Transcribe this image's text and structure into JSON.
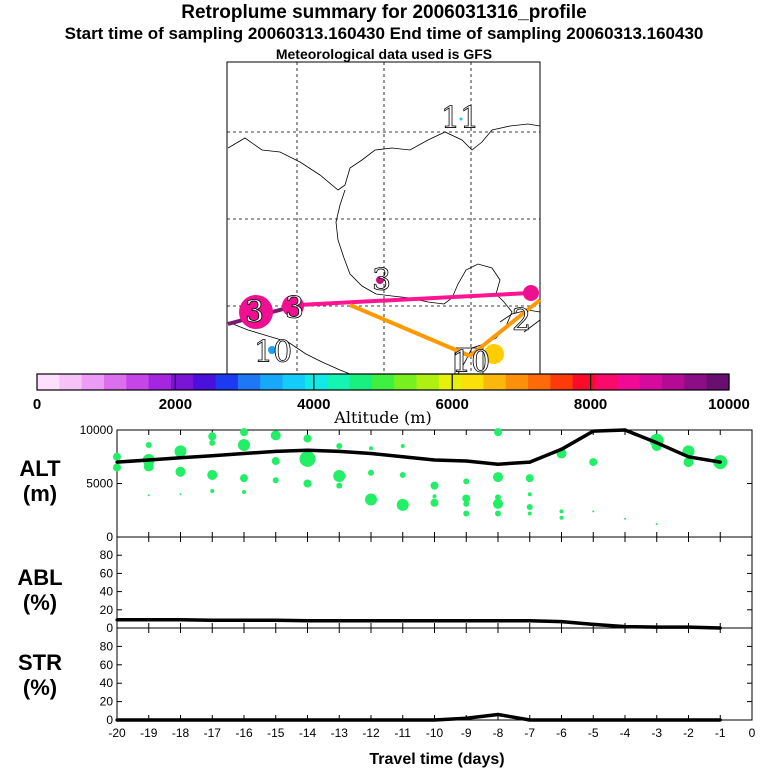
{
  "header": {
    "title": "Retroplume summary for 2006031316_profile",
    "sampling": "Start time of sampling 20060313.160430     End time of sampling 20060313.160430",
    "met": "Meteorological data used is GFS"
  },
  "map": {
    "markers": [
      "11",
      "3",
      "3",
      "3",
      "2",
      "10",
      "10"
    ],
    "line_colors": {
      "magenta": "#ff1493",
      "orange": "#ff9900",
      "purple": "#7a1a6f"
    }
  },
  "colorbar": {
    "label": "Altitude (m)",
    "ticks": [
      "0",
      "2000",
      "4000",
      "6000",
      "8000",
      "10000"
    ],
    "colors": [
      "#fde0fd",
      "#f6c2f8",
      "#ec9cf4",
      "#dc6fee",
      "#c545e8",
      "#a426e0",
      "#7a14d6",
      "#4a10dc",
      "#1e3af0",
      "#1e78f6",
      "#18a8fa",
      "#14ccfa",
      "#12e8e6",
      "#14f4b4",
      "#18f080",
      "#40f040",
      "#78f020",
      "#b0f010",
      "#e6f00a",
      "#fce00a",
      "#fcb80a",
      "#fc900a",
      "#fc6a0a",
      "#fc3a0a",
      "#fc0a2a",
      "#fc0a6a",
      "#f00a96",
      "#d60a9e",
      "#b40a96",
      "#8c0e86",
      "#6a0f72"
    ]
  },
  "panels": {
    "alt": {
      "label1": "ALT",
      "label2": "(m)"
    },
    "abl": {
      "label1": "ABL",
      "label2": "(%)"
    },
    "str": {
      "label1": "STR",
      "label2": "(%)"
    }
  },
  "chart_data": [
    {
      "type": "line",
      "title": "ALT",
      "ylabel": "ALT (m)",
      "xlabel": "Travel time (days)",
      "xlim": [
        -20,
        0
      ],
      "ylim": [
        0,
        10000
      ],
      "yticks": [
        "0",
        "5000",
        "10000"
      ],
      "x": [
        -20,
        -19,
        -18,
        -17,
        -16,
        -15,
        -14,
        -13,
        -12,
        -11,
        -10,
        -9,
        -8,
        -7,
        -6,
        -5,
        -4,
        -3,
        -2,
        -1
      ],
      "values": [
        7000,
        7200,
        7400,
        7600,
        7800,
        8000,
        8100,
        8000,
        7800,
        7500,
        7200,
        7100,
        6800,
        7000,
        8200,
        9900,
        10000,
        8800,
        7500,
        7000
      ],
      "scatter": [
        {
          "x": -20,
          "y": 7500,
          "s": 4
        },
        {
          "x": -20,
          "y": 6500,
          "s": 4
        },
        {
          "x": -19,
          "y": 8600,
          "s": 3
        },
        {
          "x": -19,
          "y": 7200,
          "s": 6
        },
        {
          "x": -19,
          "y": 6600,
          "s": 5
        },
        {
          "x": -19,
          "y": 3900,
          "s": 1
        },
        {
          "x": -18,
          "y": 8000,
          "s": 6
        },
        {
          "x": -18,
          "y": 6100,
          "s": 5
        },
        {
          "x": -18,
          "y": 4000,
          "s": 1
        },
        {
          "x": -17,
          "y": 9400,
          "s": 4
        },
        {
          "x": -17,
          "y": 8800,
          "s": 3
        },
        {
          "x": -17,
          "y": 5800,
          "s": 5
        },
        {
          "x": -17,
          "y": 4300,
          "s": 2
        },
        {
          "x": -16,
          "y": 9800,
          "s": 4
        },
        {
          "x": -16,
          "y": 8600,
          "s": 6
        },
        {
          "x": -16,
          "y": 5500,
          "s": 4
        },
        {
          "x": -16,
          "y": 4200,
          "s": 2
        },
        {
          "x": -15,
          "y": 9500,
          "s": 5
        },
        {
          "x": -15,
          "y": 7100,
          "s": 4
        },
        {
          "x": -15,
          "y": 5300,
          "s": 3
        },
        {
          "x": -14,
          "y": 9200,
          "s": 4
        },
        {
          "x": -14,
          "y": 7300,
          "s": 8
        },
        {
          "x": -14,
          "y": 5000,
          "s": 4
        },
        {
          "x": -13,
          "y": 8500,
          "s": 3
        },
        {
          "x": -13,
          "y": 5700,
          "s": 6
        },
        {
          "x": -13,
          "y": 4800,
          "s": 3
        },
        {
          "x": -12,
          "y": 8300,
          "s": 2
        },
        {
          "x": -12,
          "y": 6000,
          "s": 3
        },
        {
          "x": -12,
          "y": 3500,
          "s": 6
        },
        {
          "x": -11,
          "y": 8500,
          "s": 2
        },
        {
          "x": -11,
          "y": 5800,
          "s": 3
        },
        {
          "x": -11,
          "y": 3000,
          "s": 6
        },
        {
          "x": -10,
          "y": 4800,
          "s": 4
        },
        {
          "x": -10,
          "y": 3800,
          "s": 2
        },
        {
          "x": -10,
          "y": 3200,
          "s": 4
        },
        {
          "x": -9,
          "y": 5200,
          "s": 3
        },
        {
          "x": -9,
          "y": 3600,
          "s": 4
        },
        {
          "x": -9,
          "y": 3100,
          "s": 3
        },
        {
          "x": -9,
          "y": 2200,
          "s": 3
        },
        {
          "x": -8,
          "y": 9800,
          "s": 4
        },
        {
          "x": -8,
          "y": 5600,
          "s": 5
        },
        {
          "x": -8,
          "y": 3700,
          "s": 3
        },
        {
          "x": -8,
          "y": 3100,
          "s": 5
        },
        {
          "x": -8,
          "y": 2200,
          "s": 3
        },
        {
          "x": -7,
          "y": 5500,
          "s": 4
        },
        {
          "x": -7,
          "y": 4000,
          "s": 2
        },
        {
          "x": -7,
          "y": 2800,
          "s": 3
        },
        {
          "x": -7,
          "y": 2200,
          "s": 2
        },
        {
          "x": -6,
          "y": 7800,
          "s": 5
        },
        {
          "x": -6,
          "y": 2400,
          "s": 2
        },
        {
          "x": -6,
          "y": 1800,
          "s": 2
        },
        {
          "x": -5,
          "y": 7000,
          "s": 4
        },
        {
          "x": -5,
          "y": 2400,
          "s": 1
        },
        {
          "x": -4,
          "y": 1700,
          "s": 1
        },
        {
          "x": -3,
          "y": 9000,
          "s": 7
        },
        {
          "x": -3,
          "y": 8500,
          "s": 5
        },
        {
          "x": -3,
          "y": 1200,
          "s": 1
        },
        {
          "x": -2,
          "y": 8000,
          "s": 6
        },
        {
          "x": -2,
          "y": 7000,
          "s": 5
        },
        {
          "x": -1,
          "y": 7000,
          "s": 7
        },
        {
          "x": -1,
          "y": 6800,
          "s": 5
        }
      ]
    },
    {
      "type": "line",
      "title": "ABL",
      "ylabel": "ABL (%)",
      "xlim": [
        -20,
        0
      ],
      "ylim": [
        0,
        100
      ],
      "yticks": [
        "0",
        "20",
        "40",
        "60",
        "80"
      ],
      "x": [
        -20,
        -19,
        -18,
        -17,
        -16,
        -15,
        -14,
        -13,
        -12,
        -11,
        -10,
        -9,
        -8,
        -7,
        -6,
        -5,
        -4,
        -3,
        -2,
        -1
      ],
      "values": [
        9,
        9,
        9,
        8.5,
        8.5,
        8.5,
        8,
        8,
        8,
        8,
        8,
        8,
        8,
        8,
        7,
        4,
        1.5,
        1,
        1,
        0
      ]
    },
    {
      "type": "line",
      "title": "STR",
      "ylabel": "STR (%)",
      "xlabel": "Travel time (days)",
      "xlim": [
        -20,
        0
      ],
      "ylim": [
        0,
        100
      ],
      "yticks": [
        "0",
        "20",
        "40",
        "60",
        "80"
      ],
      "xticks": [
        "-20",
        "-19",
        "-18",
        "-17",
        "-16",
        "-15",
        "-14",
        "-13",
        "-12",
        "-11",
        "-10",
        "-9",
        "-8",
        "-7",
        "-6",
        "-5",
        "-4",
        "-3",
        "-2",
        "-1",
        "0"
      ],
      "x": [
        -20,
        -19,
        -18,
        -17,
        -16,
        -15,
        -14,
        -13,
        -12,
        -11,
        -10,
        -9,
        -8,
        -7,
        -6,
        -5,
        -4,
        -3,
        -2,
        -1
      ],
      "values": [
        0,
        0,
        0,
        0,
        0,
        0,
        0,
        0,
        0,
        0,
        0,
        2,
        6,
        0,
        0,
        0,
        0,
        0,
        0,
        0
      ]
    }
  ]
}
